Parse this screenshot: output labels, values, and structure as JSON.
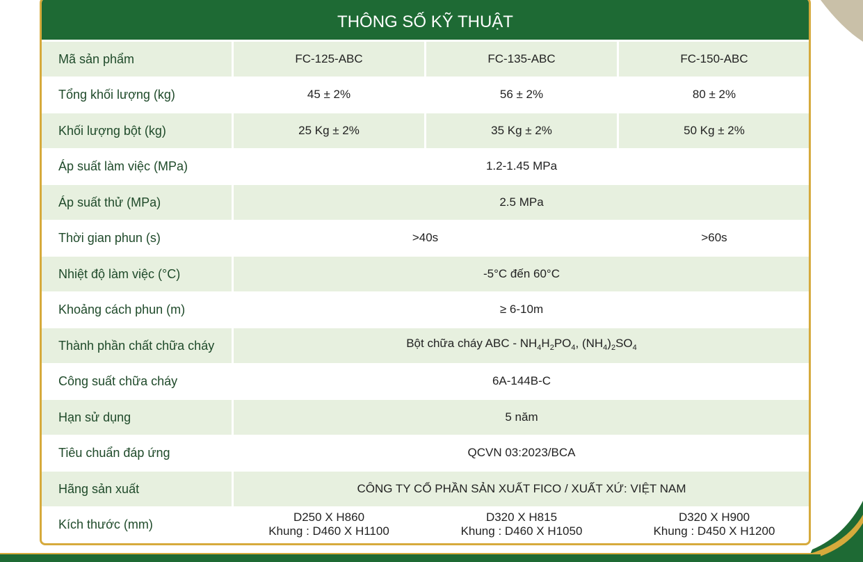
{
  "title": "THÔNG SỐ KỸ THUẬT",
  "rows": [
    {
      "label": "Mã sản phẩm",
      "cells": [
        {
          "text": "FC-125-ABC"
        },
        {
          "text": "FC-135-ABC"
        },
        {
          "text": "FC-150-ABC"
        }
      ]
    },
    {
      "label": "Tổng khối lượng (kg)",
      "cells": [
        {
          "text": "45 ± 2%"
        },
        {
          "text": "56 ± 2%"
        },
        {
          "text": "80 ± 2%"
        }
      ]
    },
    {
      "label": "Khối lượng bột (kg)",
      "cells": [
        {
          "text": "25 Kg ± 2%"
        },
        {
          "text": "35 Kg ± 2%"
        },
        {
          "text": "50 Kg ± 2%"
        }
      ]
    },
    {
      "label": "Áp suất làm việc (MPa)",
      "cells": [
        {
          "text": "1.2-1.45 MPa",
          "span": 3
        }
      ]
    },
    {
      "label": "Áp suất thử (MPa)",
      "cells": [
        {
          "text": "2.5 MPa",
          "span": 3
        }
      ]
    },
    {
      "label": "Thời gian phun (s)",
      "cells": [
        {
          "text": ">40s",
          "span": 2
        },
        {
          "text": ">60s"
        }
      ]
    },
    {
      "label": "Nhiệt độ làm việc (°C)",
      "cells": [
        {
          "text": "-5°C đến 60°C",
          "span": 3
        }
      ]
    },
    {
      "label": "Khoảng cách phun (m)",
      "cells": [
        {
          "text": "≥ 6-10m",
          "span": 3
        }
      ]
    },
    {
      "label": "Thành phần chất chữa cháy",
      "cells": [
        {
          "segments": [
            "Bột chữa cháy ABC - NH",
            "4",
            "H",
            "2",
            "PO",
            "4",
            ", (NH",
            "4",
            ")",
            "2",
            "SO",
            "4"
          ],
          "span": 3
        }
      ]
    },
    {
      "label": "Công suất chữa cháy",
      "cells": [
        {
          "text": "6A-144B-C",
          "span": 3
        }
      ]
    },
    {
      "label": "Hạn sử dụng",
      "cells": [
        {
          "text": "5 năm",
          "span": 3
        }
      ]
    },
    {
      "label": "Tiêu chuẩn đáp ứng",
      "cells": [
        {
          "text": "QCVN 03:2023/BCA",
          "span": 3
        }
      ]
    },
    {
      "label": "Hãng sản xuất",
      "cells": [
        {
          "text": "CÔNG TY CỔ PHẦN SẢN XUẤT FICO / XUẤT XỨ: VIỆT NAM",
          "span": 3
        }
      ]
    },
    {
      "label": "Kích thước (mm)",
      "cells": [
        {
          "lines": [
            "D250 X H860",
            "Khung : D460 X H1100"
          ]
        },
        {
          "lines": [
            "D320 X H815",
            "Khung : D460 X H1050"
          ]
        },
        {
          "lines": [
            "D320 X H900",
            "Khung : D450 X H1200"
          ]
        }
      ]
    }
  ]
}
